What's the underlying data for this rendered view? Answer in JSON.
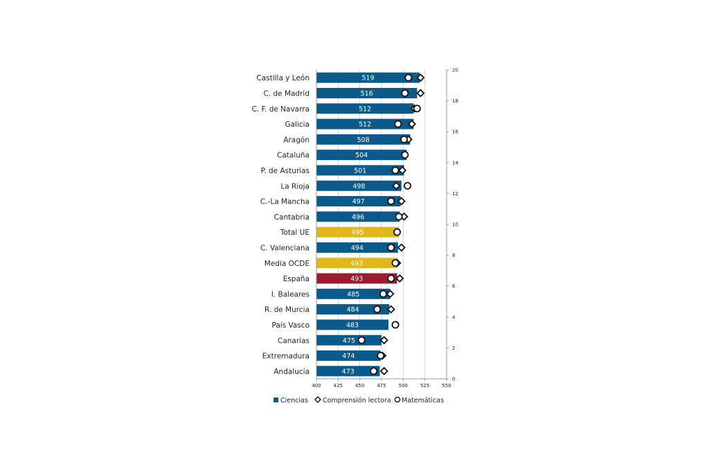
{
  "chart_data": {
    "type": "bar",
    "orientation": "horizontal",
    "categories": [
      "Castilla y León",
      "C. de Madrid",
      "C. F. de Navarra",
      "Galicia",
      "Aragón",
      "Cataluña",
      "P. de Asturias",
      "La Rioja",
      "C.-La Mancha",
      "Cantabria",
      "Total UE",
      "C. Valenciana",
      "Media OCDE",
      "España",
      "I. Baleares",
      "R. de Murcia",
      "País Vasco",
      "Canarias",
      "Extremadura",
      "Andalucía"
    ],
    "series": [
      {
        "name": "Ciencias",
        "kind": "bar",
        "values": [
          519,
          516,
          512,
          512,
          508,
          504,
          501,
          498,
          497,
          496,
          495,
          494,
          493,
          493,
          485,
          484,
          483,
          475,
          474,
          473
        ],
        "data_labels": [
          "519",
          "516",
          "512",
          "512",
          "508",
          "504",
          "501",
          "498",
          "497",
          "496",
          "495",
          "494",
          "493",
          "493",
          "485",
          "484",
          "483",
          "475",
          "474",
          "473"
        ]
      },
      {
        "name": "Comprensión lectora",
        "kind": "diamond",
        "values": [
          520,
          520,
          513,
          510,
          506,
          null,
          499,
          492,
          498,
          501,
          null,
          498,
          493,
          496,
          485,
          486,
          null,
          478,
          476,
          478
        ]
      },
      {
        "name": "Matemáticas",
        "kind": "circle",
        "values": [
          506,
          502,
          516,
          494,
          501,
          502,
          491,
          505,
          486,
          495,
          493,
          486,
          491,
          486,
          477,
          470,
          491,
          452,
          474,
          466
        ]
      }
    ],
    "bar_colors": [
      "#0a5a8c",
      "#0a5a8c",
      "#0a5a8c",
      "#0a5a8c",
      "#0a5a8c",
      "#0a5a8c",
      "#0a5a8c",
      "#0a5a8c",
      "#0a5a8c",
      "#0a5a8c",
      "#e0b81b",
      "#0a5a8c",
      "#e0b81b",
      "#9b1b30",
      "#0a5a8c",
      "#0a5a8c",
      "#0a5a8c",
      "#0a5a8c",
      "#0a5a8c",
      "#0a5a8c"
    ],
    "xlim": [
      400,
      550
    ],
    "x_ticks": [
      "400",
      "425",
      "450",
      "475",
      "500",
      "525",
      "550"
    ],
    "secondary_ylim": [
      0,
      20
    ],
    "secondary_y_ticks": [
      "0",
      "2",
      "4",
      "6",
      "8",
      "10",
      "12",
      "14",
      "16",
      "18",
      "20"
    ],
    "grid": "vertical",
    "legend_position": "bottom",
    "colors": {
      "bar": "#0a5a8c",
      "highlight_ue_ocde": "#e0b81b",
      "highlight_espana": "#9b1b30",
      "grid": "#c8c8c8"
    }
  }
}
